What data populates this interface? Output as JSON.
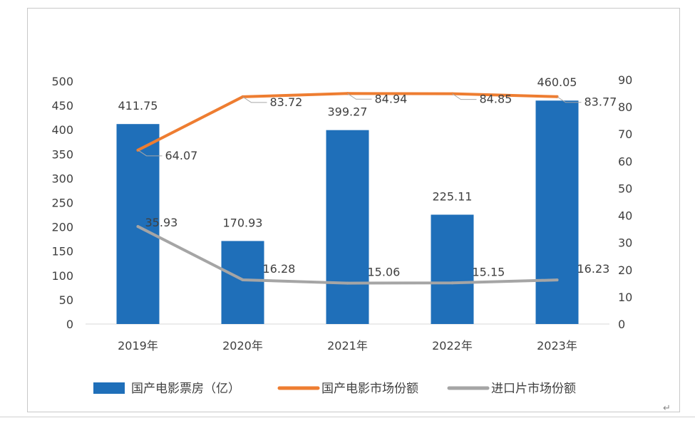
{
  "chart_data": {
    "type": "bar+line",
    "categories": [
      "2019年",
      "2020年",
      "2021年",
      "2022年",
      "2023年"
    ],
    "series": [
      {
        "name": "国产电影票房（亿）",
        "type": "bar",
        "axis": "left",
        "values": [
          411.75,
          170.93,
          399.27,
          225.11,
          460.05
        ],
        "labels": [
          "411.75",
          "170.93",
          "399.27",
          "225.11",
          "460.05"
        ],
        "color": "#1F6FB9"
      },
      {
        "name": "国产电影市场份额",
        "type": "line",
        "axis": "right",
        "values": [
          64.07,
          83.72,
          84.94,
          84.85,
          83.77
        ],
        "labels": [
          "64.07",
          "83.72",
          "84.94",
          "84.85",
          "83.77"
        ],
        "color": "#EE7D31"
      },
      {
        "name": "进口片市场份额",
        "type": "line",
        "axis": "right",
        "values": [
          35.93,
          16.28,
          15.06,
          15.15,
          16.23
        ],
        "labels": [
          "35.93",
          "16.28",
          "15.06",
          "15.15",
          "16.23"
        ],
        "color": "#A5A5A5"
      }
    ],
    "left_axis": {
      "min": 0,
      "max": 500,
      "step": 50,
      "ticks": [
        "0",
        "50",
        "100",
        "150",
        "200",
        "250",
        "300",
        "350",
        "400",
        "450",
        "500"
      ]
    },
    "right_axis": {
      "min": 0,
      "max": 90,
      "step": 10,
      "ticks": [
        "0",
        "10",
        "20",
        "30",
        "40",
        "50",
        "60",
        "70",
        "80",
        "90"
      ]
    },
    "grid": false,
    "legend_position": "bottom"
  }
}
